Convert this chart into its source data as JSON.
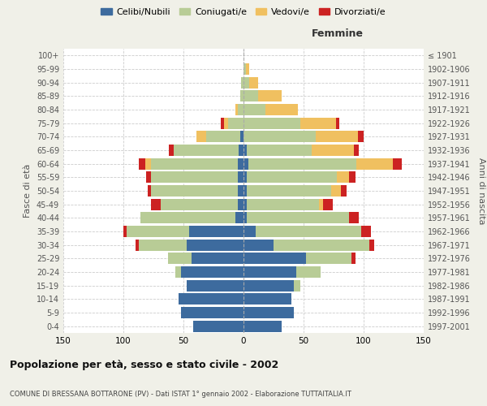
{
  "age_groups": [
    "0-4",
    "5-9",
    "10-14",
    "15-19",
    "20-24",
    "25-29",
    "30-34",
    "35-39",
    "40-44",
    "45-49",
    "50-54",
    "55-59",
    "60-64",
    "65-69",
    "70-74",
    "75-79",
    "80-84",
    "85-89",
    "90-94",
    "95-99",
    "100+"
  ],
  "birth_years": [
    "1997-2001",
    "1992-1996",
    "1987-1991",
    "1982-1986",
    "1977-1981",
    "1972-1976",
    "1967-1971",
    "1962-1966",
    "1957-1961",
    "1952-1956",
    "1947-1951",
    "1942-1946",
    "1937-1941",
    "1932-1936",
    "1927-1931",
    "1922-1926",
    "1917-1921",
    "1912-1916",
    "1907-1911",
    "1902-1906",
    "≤ 1901"
  ],
  "males": {
    "celibi": [
      42,
      52,
      54,
      47,
      52,
      43,
      47,
      45,
      7,
      5,
      5,
      5,
      5,
      4,
      3,
      0,
      0,
      0,
      0,
      0,
      0
    ],
    "coniugati": [
      0,
      0,
      0,
      0,
      5,
      20,
      40,
      52,
      79,
      64,
      72,
      72,
      72,
      54,
      28,
      13,
      5,
      3,
      2,
      0,
      0
    ],
    "vedovi": [
      0,
      0,
      0,
      0,
      0,
      0,
      0,
      0,
      0,
      0,
      0,
      0,
      5,
      0,
      8,
      3,
      2,
      0,
      0,
      0,
      0
    ],
    "divorziati": [
      0,
      0,
      0,
      0,
      0,
      0,
      3,
      3,
      0,
      8,
      3,
      4,
      5,
      4,
      0,
      3,
      0,
      0,
      0,
      0,
      0
    ]
  },
  "females": {
    "nubili": [
      32,
      42,
      40,
      42,
      44,
      52,
      25,
      10,
      3,
      3,
      3,
      3,
      4,
      3,
      0,
      0,
      0,
      0,
      0,
      0,
      0
    ],
    "coniugate": [
      0,
      0,
      0,
      5,
      20,
      38,
      80,
      88,
      85,
      60,
      70,
      75,
      90,
      54,
      60,
      47,
      18,
      12,
      5,
      2,
      0
    ],
    "vedove": [
      0,
      0,
      0,
      0,
      0,
      0,
      0,
      0,
      0,
      3,
      8,
      10,
      30,
      35,
      35,
      30,
      27,
      20,
      7,
      3,
      0
    ],
    "divorziate": [
      0,
      0,
      0,
      0,
      0,
      3,
      4,
      8,
      8,
      8,
      5,
      5,
      8,
      4,
      5,
      3,
      0,
      0,
      0,
      0,
      0
    ]
  },
  "colors": {
    "celibi": "#3d6b9e",
    "coniugati": "#b8cc96",
    "vedovi": "#f0c060",
    "divorziati": "#cc2222"
  },
  "xlim": 150,
  "title": "Popolazione per età, sesso e stato civile - 2002",
  "subtitle": "COMUNE DI BRESSANA BOTTARONE (PV) - Dati ISTAT 1° gennaio 2002 - Elaborazione TUTTAITALIA.IT",
  "ylabel": "Fasce di età",
  "ylabel_right": "Anni di nascita",
  "legend_labels": [
    "Celibi/Nubili",
    "Coniugati/e",
    "Vedovi/e",
    "Divorziati/e"
  ],
  "bg_color": "#f0f0e8",
  "plot_bg": "#ffffff"
}
